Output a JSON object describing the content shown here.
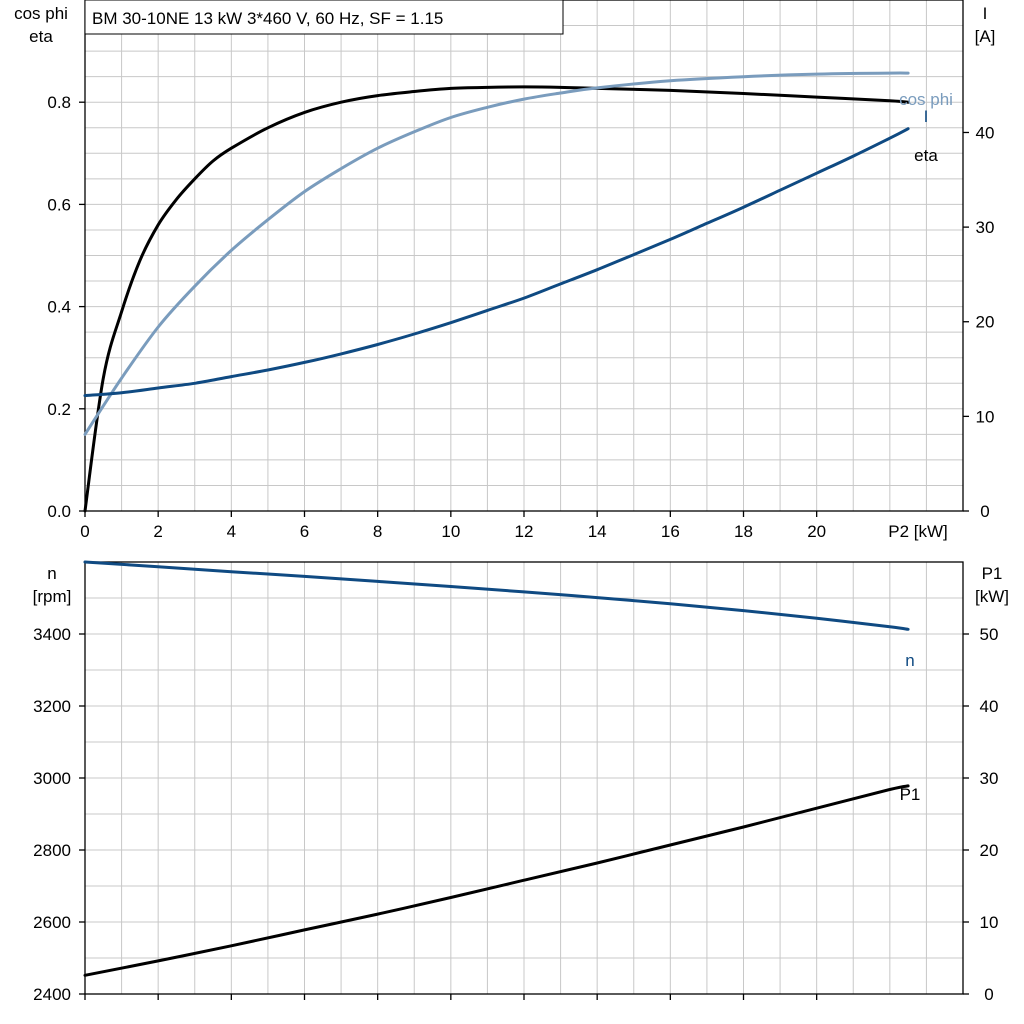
{
  "title": "BM 30-10NE   13 kW   3*460 V, 60 Hz, SF = 1.15",
  "colors": {
    "eta": "#000000",
    "cos_phi": "#7a9cbd",
    "current": "#0f4a82",
    "speed": "#0f4a82",
    "p1": "#000000"
  },
  "chart_data": [
    {
      "type": "line",
      "x_label": "P2 [kW]",
      "x_ticks": [
        "0",
        "2",
        "4",
        "6",
        "8",
        "10",
        "12",
        "14",
        "16",
        "18",
        "20"
      ],
      "xlim": [
        0,
        24
      ],
      "y_left_label": [
        "cos phi",
        "eta"
      ],
      "y_left_ticks": [
        "0.0",
        "0.2",
        "0.4",
        "0.6",
        "0.8"
      ],
      "ylim_left": [
        0,
        1.0
      ],
      "y_right_label": [
        "I",
        "[A]"
      ],
      "y_right_ticks": [
        "0",
        "10",
        "20",
        "30",
        "40"
      ],
      "ylim_right": [
        0,
        54
      ],
      "grid": true,
      "series": [
        {
          "name": "eta",
          "axis": "left",
          "color_key": "eta",
          "x": [
            0,
            0.5,
            1,
            1.5,
            2,
            2.5,
            3,
            3.5,
            4,
            5,
            6,
            7,
            8,
            9,
            10,
            11,
            12,
            13,
            14,
            16,
            18,
            20,
            22,
            22.5
          ],
          "y": [
            0.0,
            0.26,
            0.39,
            0.49,
            0.56,
            0.61,
            0.65,
            0.685,
            0.71,
            0.75,
            0.78,
            0.8,
            0.813,
            0.821,
            0.827,
            0.829,
            0.83,
            0.829,
            0.827,
            0.823,
            0.817,
            0.81,
            0.803,
            0.8
          ]
        },
        {
          "name": "cos phi",
          "axis": "left",
          "color_key": "cos_phi",
          "x": [
            0,
            1,
            2,
            3,
            4,
            5,
            6,
            7,
            8,
            9,
            10,
            11,
            12,
            13,
            14,
            16,
            18,
            20,
            22,
            22.5
          ],
          "y": [
            0.15,
            0.26,
            0.36,
            0.44,
            0.51,
            0.57,
            0.625,
            0.67,
            0.71,
            0.742,
            0.77,
            0.79,
            0.806,
            0.818,
            0.828,
            0.842,
            0.85,
            0.855,
            0.857,
            0.857
          ]
        },
        {
          "name": "I",
          "axis": "right",
          "color_key": "current",
          "x": [
            0,
            1,
            2,
            3,
            4,
            5,
            6,
            7,
            8,
            9,
            10,
            11,
            12,
            13,
            14,
            15,
            16,
            17,
            18,
            19,
            20,
            21,
            22,
            22.5
          ],
          "y": [
            12.2,
            12.5,
            13.0,
            13.5,
            14.2,
            14.9,
            15.7,
            16.6,
            17.6,
            18.7,
            19.9,
            21.2,
            22.5,
            24.0,
            25.5,
            27.1,
            28.7,
            30.4,
            32.1,
            33.9,
            35.7,
            37.5,
            39.4,
            40.4
          ]
        }
      ]
    },
    {
      "type": "line",
      "xlim": [
        0,
        24
      ],
      "y_left_label": [
        "n",
        "[rpm]"
      ],
      "y_left_ticks": [
        "2400",
        "2600",
        "2800",
        "3000",
        "3200",
        "3400"
      ],
      "ylim_left": [
        2400,
        3600
      ],
      "y_right_label": [
        "P1",
        "[kW]"
      ],
      "y_right_ticks": [
        "0",
        "10",
        "20",
        "30",
        "40",
        "50"
      ],
      "ylim_right": [
        0,
        60
      ],
      "grid": true,
      "series": [
        {
          "name": "n",
          "axis": "left",
          "color_key": "speed",
          "x": [
            0,
            2,
            4,
            6,
            8,
            10,
            12,
            14,
            16,
            18,
            20,
            22,
            22.5
          ],
          "y": [
            3600,
            3587,
            3573,
            3560,
            3546,
            3532,
            3517,
            3501,
            3484,
            3465,
            3444,
            3420,
            3413
          ]
        },
        {
          "name": "P1",
          "axis": "right",
          "color_key": "p1",
          "x": [
            0,
            2,
            4,
            6,
            8,
            10,
            12,
            14,
            16,
            18,
            20,
            22,
            22.5
          ],
          "y": [
            2.6,
            4.6,
            6.7,
            8.9,
            11.1,
            13.4,
            15.8,
            18.2,
            20.7,
            23.2,
            25.8,
            28.4,
            28.9
          ]
        }
      ]
    }
  ]
}
